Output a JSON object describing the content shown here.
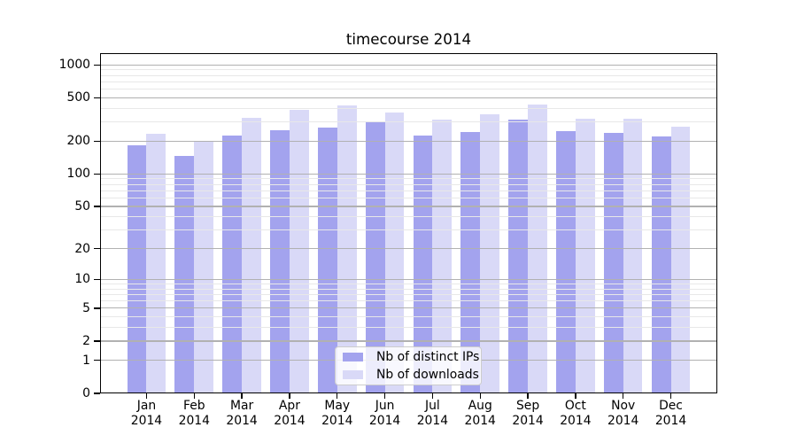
{
  "chart_data": {
    "type": "bar",
    "title": "timecourse 2014",
    "x_tick_second_line": "2014",
    "categories": [
      "Jan",
      "Feb",
      "Mar",
      "Apr",
      "May",
      "Jun",
      "Jul",
      "Aug",
      "Sep",
      "Oct",
      "Nov",
      "Dec"
    ],
    "series": [
      {
        "name": "Nb of distinct IPs",
        "color": "#a3a3ee",
        "values": [
          183,
          148,
          227,
          254,
          266,
          297,
          227,
          242,
          319,
          247,
          239,
          221
        ]
      },
      {
        "name": "Nb of downloads",
        "color": "#d9d9f7",
        "values": [
          236,
          198,
          327,
          389,
          430,
          365,
          316,
          353,
          435,
          322,
          322,
          271
        ]
      }
    ],
    "xlabel": "",
    "ylabel": "",
    "y_scale": "log(1+x)",
    "y_ticks": [
      0,
      1,
      2,
      5,
      10,
      20,
      50,
      100,
      200,
      500,
      1000
    ],
    "y_minor_gridlines": [
      3,
      4,
      6,
      7,
      8,
      9,
      30,
      40,
      60,
      70,
      80,
      90,
      300,
      400,
      600,
      700,
      800,
      900
    ],
    "ylim": [
      0,
      1282
    ],
    "grid": true,
    "legend_position": "lower center",
    "colors": {
      "major_grid": "#b1b1b1",
      "minor_grid": "#e8e8e8",
      "axis": "#000000",
      "text": "#000000",
      "background": "#ffffff"
    }
  }
}
